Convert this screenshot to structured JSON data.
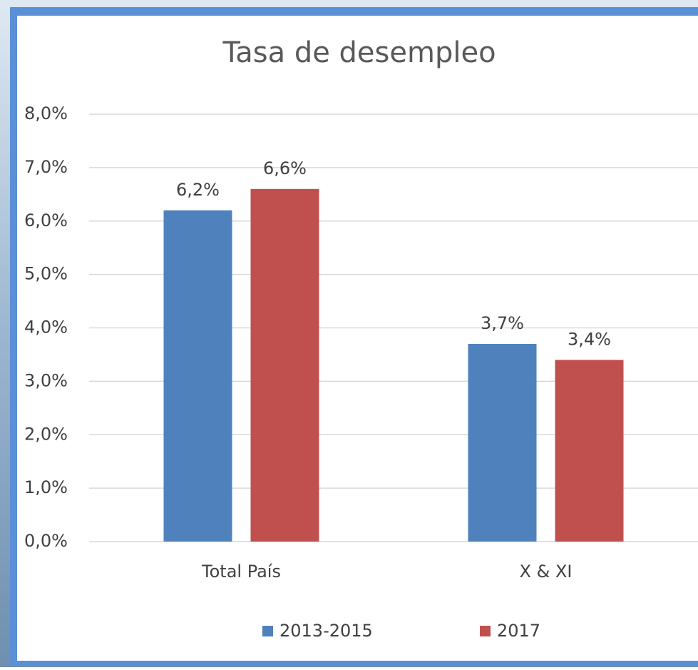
{
  "chart_data": {
    "type": "bar",
    "title": "Tasa de desempleo",
    "categories": [
      "Total País",
      "X & XI"
    ],
    "series": [
      {
        "name": "2013-2015",
        "color": "#4f81bd",
        "values": [
          6.2,
          3.7
        ],
        "value_labels": [
          "6,2%",
          "3,7%"
        ]
      },
      {
        "name": "2017",
        "color": "#c0504d",
        "values": [
          6.6,
          3.4
        ],
        "value_labels": [
          "6,6%",
          "3,4%"
        ]
      }
    ],
    "ylim": [
      0,
      8
    ],
    "yticks": [
      {
        "value": 0,
        "label": "0,0%"
      },
      {
        "value": 1,
        "label": "1,0%"
      },
      {
        "value": 2,
        "label": "2,0%"
      },
      {
        "value": 3,
        "label": "3,0%"
      },
      {
        "value": 4,
        "label": "4,0%"
      },
      {
        "value": 5,
        "label": "5,0%"
      },
      {
        "value": 6,
        "label": "6,0%"
      },
      {
        "value": 7,
        "label": "7,0%"
      },
      {
        "value": 8,
        "label": "8,0%"
      }
    ],
    "grid": true,
    "legend": "bottom"
  }
}
